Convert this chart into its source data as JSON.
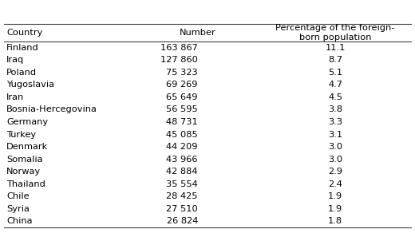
{
  "col_headers": [
    "Country",
    "Number",
    "Percentage of the foreign-\nborn population"
  ],
  "rows": [
    [
      "Finland",
      "163 867",
      "11.1"
    ],
    [
      "Iraq",
      "127 860",
      "8.7"
    ],
    [
      "Poland",
      "75 323",
      "5.1"
    ],
    [
      "Yugoslavia",
      "69 269",
      "4.7"
    ],
    [
      "Iran",
      "65 649",
      "4.5"
    ],
    [
      "Bosnia-Hercegovina",
      "56 595",
      "3.8"
    ],
    [
      "Germany",
      "48 731",
      "3.3"
    ],
    [
      "Turkey",
      "45 085",
      "3.1"
    ],
    [
      "Denmark",
      "44 209",
      "3.0"
    ],
    [
      "Somalia",
      "43 966",
      "3.0"
    ],
    [
      "Norway",
      "42 884",
      "2.9"
    ],
    [
      "Thailand",
      "35 554",
      "2.4"
    ],
    [
      "Chile",
      "28 425",
      "1.9"
    ],
    [
      "Syria",
      "27 510",
      "1.9"
    ],
    [
      "China",
      "26 824",
      "1.8"
    ]
  ],
  "font_size": 8.2,
  "header_font_size": 8.2,
  "bg_color": "#ffffff",
  "text_color": "#000000",
  "line_color": "#444444"
}
